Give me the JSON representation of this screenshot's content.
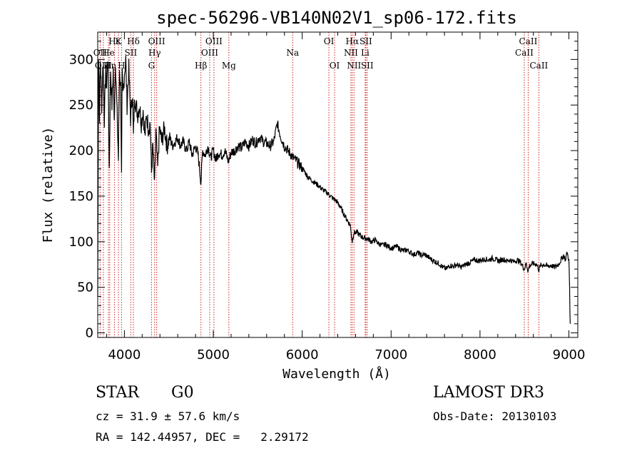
{
  "chart_data": {
    "type": "line",
    "title": "spec-56296-VB140N02V1_sp06-172.fits",
    "xlabel": "Wavelength (Å)",
    "ylabel": "Flux (relative)",
    "xlim": [
      3700,
      9100
    ],
    "ylim": [
      -5,
      330
    ],
    "x_ticks": [
      4000,
      5000,
      6000,
      7000,
      8000,
      9000
    ],
    "y_ticks": [
      0,
      50,
      100,
      150,
      200,
      250,
      300
    ],
    "grid": false,
    "series": [
      {
        "name": "spectrum",
        "points": [
          [
            3700,
            40
          ],
          [
            3710,
            305
          ],
          [
            3720,
            240
          ],
          [
            3730,
            300
          ],
          [
            3745,
            250
          ],
          [
            3760,
            300
          ],
          [
            3775,
            235
          ],
          [
            3790,
            290
          ],
          [
            3800,
            270
          ],
          [
            3815,
            305
          ],
          [
            3830,
            180
          ],
          [
            3845,
            290
          ],
          [
            3860,
            250
          ],
          [
            3875,
            290
          ],
          [
            3885,
            230
          ],
          [
            3900,
            300
          ],
          [
            3915,
            250
          ],
          [
            3933,
            190
          ],
          [
            3945,
            290
          ],
          [
            3958,
            270
          ],
          [
            3968,
            170
          ],
          [
            3975,
            280
          ],
          [
            3985,
            260
          ],
          [
            4000,
            285
          ],
          [
            4015,
            300
          ],
          [
            4030,
            250
          ],
          [
            4050,
            290
          ],
          [
            4070,
            235
          ],
          [
            4090,
            265
          ],
          [
            4101,
            215
          ],
          [
            4115,
            260
          ],
          [
            4130,
            250
          ],
          [
            4150,
            240
          ],
          [
            4170,
            250
          ],
          [
            4190,
            230
          ],
          [
            4210,
            245
          ],
          [
            4230,
            215
          ],
          [
            4250,
            240
          ],
          [
            4270,
            225
          ],
          [
            4290,
            230
          ],
          [
            4305,
            175
          ],
          [
            4320,
            205
          ],
          [
            4340,
            160
          ],
          [
            4355,
            220
          ],
          [
            4375,
            180
          ],
          [
            4395,
            225
          ],
          [
            4420,
            210
          ],
          [
            4450,
            225
          ],
          [
            4480,
            205
          ],
          [
            4510,
            215
          ],
          [
            4540,
            205
          ],
          [
            4570,
            210
          ],
          [
            4600,
            215
          ],
          [
            4630,
            205
          ],
          [
            4660,
            210
          ],
          [
            4700,
            200
          ],
          [
            4730,
            210
          ],
          [
            4760,
            195
          ],
          [
            4800,
            205
          ],
          [
            4830,
            195
          ],
          [
            4861,
            165
          ],
          [
            4880,
            200
          ],
          [
            4910,
            195
          ],
          [
            4940,
            205
          ],
          [
            4970,
            192
          ],
          [
            5000,
            200
          ],
          [
            5030,
            190
          ],
          [
            5060,
            198
          ],
          [
            5100,
            195
          ],
          [
            5130,
            200
          ],
          [
            5170,
            188
          ],
          [
            5200,
            198
          ],
          [
            5240,
            200
          ],
          [
            5280,
            205
          ],
          [
            5320,
            203
          ],
          [
            5360,
            210
          ],
          [
            5400,
            205
          ],
          [
            5440,
            212
          ],
          [
            5480,
            208
          ],
          [
            5520,
            215
          ],
          [
            5560,
            210
          ],
          [
            5600,
            208
          ],
          [
            5640,
            205
          ],
          [
            5680,
            210
          ],
          [
            5700,
            220
          ],
          [
            5720,
            230
          ],
          [
            5740,
            222
          ],
          [
            5760,
            215
          ],
          [
            5800,
            205
          ],
          [
            5840,
            200
          ],
          [
            5880,
            195
          ],
          [
            5900,
            192
          ],
          [
            5940,
            188
          ],
          [
            5980,
            183
          ],
          [
            6020,
            178
          ],
          [
            6060,
            172
          ],
          [
            6100,
            168
          ],
          [
            6140,
            165
          ],
          [
            6180,
            162
          ],
          [
            6220,
            158
          ],
          [
            6260,
            155
          ],
          [
            6300,
            152
          ],
          [
            6340,
            148
          ],
          [
            6380,
            145
          ],
          [
            6420,
            140
          ],
          [
            6460,
            132
          ],
          [
            6500,
            125
          ],
          [
            6540,
            118
          ],
          [
            6563,
            100
          ],
          [
            6580,
            110
          ],
          [
            6620,
            110
          ],
          [
            6660,
            106
          ],
          [
            6700,
            104
          ],
          [
            6740,
            103
          ],
          [
            6780,
            100
          ],
          [
            6820,
            102
          ],
          [
            6860,
            98
          ],
          [
            6900,
            96
          ],
          [
            6940,
            97
          ],
          [
            6980,
            94
          ],
          [
            7020,
            93
          ],
          [
            7060,
            95
          ],
          [
            7100,
            92
          ],
          [
            7140,
            90
          ],
          [
            7180,
            91
          ],
          [
            7220,
            88
          ],
          [
            7260,
            86
          ],
          [
            7300,
            88
          ],
          [
            7340,
            85
          ],
          [
            7380,
            86
          ],
          [
            7420,
            83
          ],
          [
            7460,
            80
          ],
          [
            7500,
            78
          ],
          [
            7540,
            76
          ],
          [
            7580,
            72
          ],
          [
            7620,
            70
          ],
          [
            7660,
            74
          ],
          [
            7700,
            73
          ],
          [
            7740,
            75
          ],
          [
            7780,
            72
          ],
          [
            7820,
            74
          ],
          [
            7860,
            76
          ],
          [
            7900,
            78
          ],
          [
            7940,
            80
          ],
          [
            7980,
            79
          ],
          [
            8020,
            80
          ],
          [
            8060,
            81
          ],
          [
            8100,
            80
          ],
          [
            8140,
            82
          ],
          [
            8180,
            80
          ],
          [
            8220,
            79
          ],
          [
            8260,
            81
          ],
          [
            8300,
            79
          ],
          [
            8340,
            80
          ],
          [
            8380,
            78
          ],
          [
            8420,
            80
          ],
          [
            8460,
            77
          ],
          [
            8498,
            70
          ],
          [
            8520,
            76
          ],
          [
            8542,
            68
          ],
          [
            8560,
            74
          ],
          [
            8600,
            76
          ],
          [
            8640,
            75
          ],
          [
            8662,
            69
          ],
          [
            8680,
            74
          ],
          [
            8720,
            75
          ],
          [
            8760,
            73
          ],
          [
            8800,
            74
          ],
          [
            8840,
            72
          ],
          [
            8880,
            75
          ],
          [
            8900,
            78
          ],
          [
            8940,
            85
          ],
          [
            8960,
            80
          ],
          [
            8980,
            88
          ],
          [
            9000,
            80
          ],
          [
            9008,
            50
          ],
          [
            9012,
            20
          ],
          [
            9015,
            10
          ]
        ]
      }
    ],
    "line_markers": [
      {
        "label": "Hδ",
        "wave": 4101,
        "row": 1
      },
      {
        "label": "K",
        "wave": 3933,
        "row": 1
      },
      {
        "label": "Hε",
        "wave": 3889,
        "row": 1
      },
      {
        "label": "OII",
        "wave": 3727,
        "row": 2
      },
      {
        "label": "He",
        "wave": 3820,
        "row": 2
      },
      {
        "label": "SII",
        "wave": 4072,
        "row": 2
      },
      {
        "label": "OIII",
        "wave": 3763,
        "row": 3
      },
      {
        "label": "Hη",
        "wave": 3835,
        "row": 3
      },
      {
        "label": "H",
        "wave": 3968,
        "row": 3
      },
      {
        "label": "OIII",
        "wave": 4363,
        "row": 1
      },
      {
        "label": "Hγ",
        "wave": 4340,
        "row": 2
      },
      {
        "label": "G",
        "wave": 4305,
        "row": 3
      },
      {
        "label": "OIII",
        "wave": 5007,
        "row": 1
      },
      {
        "label": "OIII",
        "wave": 4959,
        "row": 2
      },
      {
        "label": "Hβ",
        "wave": 4861,
        "row": 3
      },
      {
        "label": "Mg",
        "wave": 5175,
        "row": 3
      },
      {
        "label": "Na",
        "wave": 5893,
        "row": 2
      },
      {
        "label": "OI",
        "wave": 6300,
        "row": 1
      },
      {
        "label": "OI",
        "wave": 6364,
        "row": 3
      },
      {
        "label": "Hα",
        "wave": 6563,
        "row": 1
      },
      {
        "label": "SII",
        "wave": 6716,
        "row": 1
      },
      {
        "label": "NII",
        "wave": 6548,
        "row": 2
      },
      {
        "label": "Li",
        "wave": 6708,
        "row": 2
      },
      {
        "label": "NII",
        "wave": 6583,
        "row": 3
      },
      {
        "label": "SII",
        "wave": 6731,
        "row": 3
      },
      {
        "label": "CaII",
        "wave": 8542,
        "row": 1
      },
      {
        "label": "CaII",
        "wave": 8498,
        "row": 2
      },
      {
        "label": "CaII",
        "wave": 8662,
        "row": 3
      }
    ],
    "marker_color": "#cc2222"
  },
  "info": {
    "class": "STAR",
    "subclass": "G0",
    "survey": "LAMOST DR3",
    "velocity": "cz = 31.9 ± 57.6 km/s",
    "obs_date": "Obs-Date: 20130103",
    "coords": "RA = 142.44957, DEC =   2.29172"
  }
}
